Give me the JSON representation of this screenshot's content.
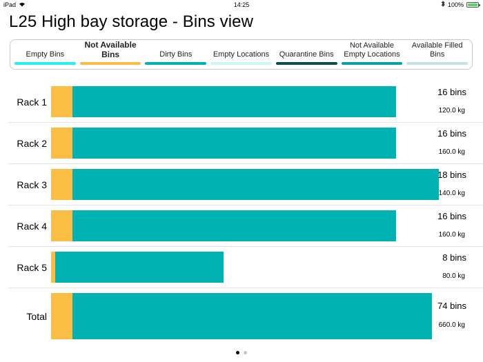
{
  "status_bar": {
    "device": "iPad",
    "time": "14:25",
    "battery": "100%",
    "battery_level": 1.0
  },
  "page_title": "L25 High bay storage - Bins view",
  "legend": [
    {
      "label": "Empty Bins",
      "color": "#28f0f0",
      "bold": false
    },
    {
      "label": "Not Available Bins",
      "color": "#fbbe45",
      "bold": true
    },
    {
      "label": "Dirty Bins",
      "color": "#00b2b2",
      "bold": false
    },
    {
      "label": "Empty Locations",
      "color": "#cdf7f7",
      "bold": false
    },
    {
      "label": "Quarantine Bins",
      "color": "#0c4e4e",
      "bold": false
    },
    {
      "label": "Not Available Empty Locations",
      "color": "#05a3a3",
      "bold": false
    },
    {
      "label": "Available Filled Bins",
      "color": "#c2e3e3",
      "bold": false
    }
  ],
  "colors": {
    "not_available": "#fbbe45",
    "dirty": "#00b2b2"
  },
  "scale_max_bins": 18,
  "racks": [
    {
      "label": "Rack 1",
      "bins_text": "16 bins",
      "weight_text": "120.0 kg",
      "not_available": 1,
      "dirty": 15
    },
    {
      "label": "Rack 2",
      "bins_text": "16 bins",
      "weight_text": "160.0 kg",
      "not_available": 1,
      "dirty": 15
    },
    {
      "label": "Rack 3",
      "bins_text": "18 bins",
      "weight_text": "140.0 kg",
      "not_available": 1,
      "dirty": 17
    },
    {
      "label": "Rack 4",
      "bins_text": "16 bins",
      "weight_text": "160.0 kg",
      "not_available": 1,
      "dirty": 15
    },
    {
      "label": "Rack 5",
      "bins_text": "8 bins",
      "weight_text": "80.0 kg",
      "not_available": 0.2,
      "dirty": 7.8
    },
    {
      "label": "Total",
      "bins_text": "74 bins",
      "weight_text": "660.0 kg",
      "not_available": 4.2,
      "dirty": 69.8
    }
  ],
  "pager": {
    "current": 1,
    "total": 2
  }
}
